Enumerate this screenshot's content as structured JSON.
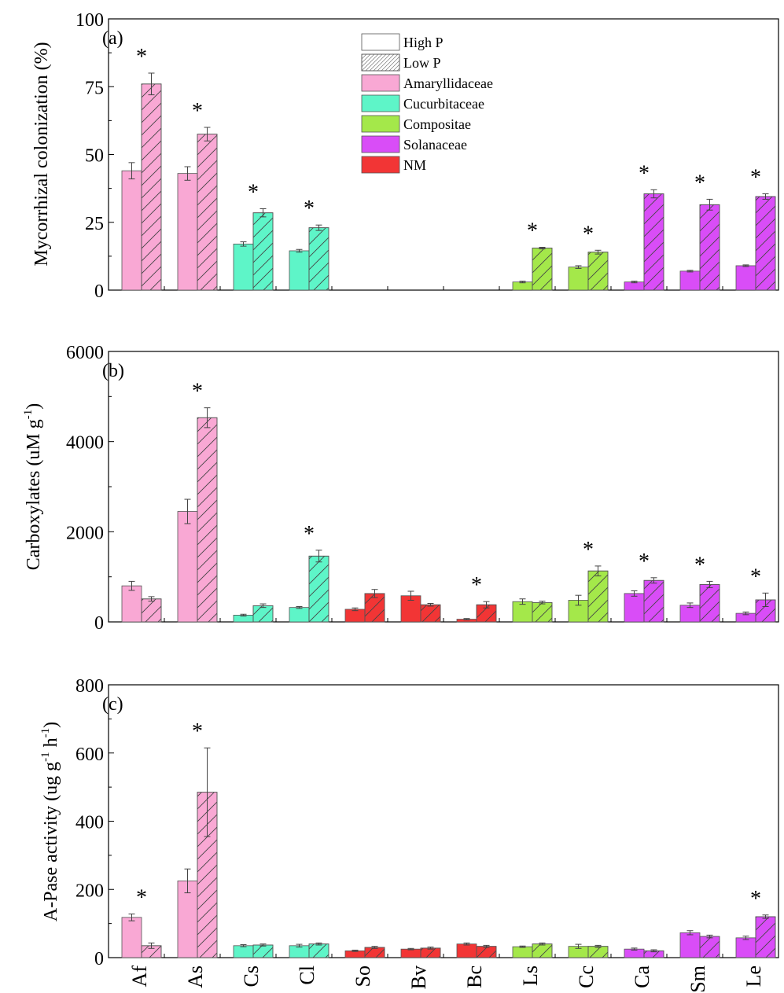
{
  "legend": {
    "pattern_items": [
      {
        "label": "High P",
        "pattern": "solid"
      },
      {
        "label": "Low P",
        "pattern": "hatch"
      }
    ],
    "family_items": [
      {
        "label": "Amaryllidaceae",
        "color": "#f9a8d4"
      },
      {
        "label": "Cucurbitaceae",
        "color": "#5ef5c8"
      },
      {
        "label": "Compositae",
        "color": "#a4e84a"
      },
      {
        "label": "Solanaceae",
        "color": "#d94df7"
      },
      {
        "label": "NM",
        "color": "#f23535"
      }
    ]
  },
  "colors": {
    "Amaryllidaceae": "#f9a8d4",
    "Cucurbitaceae": "#5ef5c8",
    "Compositae": "#a4e84a",
    "Solanaceae": "#d94df7",
    "NM": "#f23535"
  },
  "x_tick_labels": [
    "Af",
    "As",
    "Cs",
    "Cl",
    "So",
    "Bv",
    "Bc",
    "Ls",
    "Cc",
    "Ca",
    "Sm",
    "Le"
  ],
  "chart_data": [
    {
      "type": "bar",
      "panel": "(a)",
      "ylabel": "Mycorrhizal colonization (%)",
      "ylim": [
        0,
        100
      ],
      "yticks": [
        "0",
        "25",
        "50",
        "75",
        "100"
      ],
      "categories": [
        "Af",
        "As",
        "Cs",
        "Cl",
        "So",
        "Bv",
        "Bc",
        "Ls",
        "Cc",
        "Ca",
        "Sm",
        "Le"
      ],
      "families": [
        "Amaryllidaceae",
        "Amaryllidaceae",
        "Cucurbitaceae",
        "Cucurbitaceae",
        "NM",
        "NM",
        "NM",
        "Compositae",
        "Compositae",
        "Solanaceae",
        "Solanaceae",
        "Solanaceae"
      ],
      "series": [
        {
          "name": "High P",
          "values": [
            44,
            43,
            17,
            14.5,
            0,
            0,
            0,
            3,
            8.5,
            3,
            7,
            9
          ],
          "errors": [
            3,
            2.5,
            0.8,
            0.5,
            0,
            0,
            0,
            0.3,
            0.5,
            0.3,
            0.3,
            0.3
          ]
        },
        {
          "name": "Low P",
          "values": [
            76,
            57.5,
            28.5,
            23,
            0,
            0,
            0,
            15.5,
            14,
            35.5,
            31.5,
            34.5
          ],
          "errors": [
            4,
            2.5,
            1.5,
            1,
            0,
            0,
            0,
            0.3,
            0.7,
            1.5,
            2,
            1
          ]
        }
      ],
      "significance": [
        true,
        true,
        true,
        true,
        false,
        false,
        false,
        true,
        true,
        true,
        true,
        true
      ],
      "significance_mark": "*"
    },
    {
      "type": "bar",
      "panel": "(b)",
      "ylabel_parts": [
        "Carboxylates (uM g",
        "-1",
        ")"
      ],
      "ylim": [
        0,
        6000
      ],
      "yticks": [
        "0",
        "2000",
        "4000",
        "6000"
      ],
      "categories": [
        "Af",
        "As",
        "Cs",
        "Cl",
        "So",
        "Bv",
        "Bc",
        "Ls",
        "Cc",
        "Ca",
        "Sm",
        "Le"
      ],
      "families": [
        "Amaryllidaceae",
        "Amaryllidaceae",
        "Cucurbitaceae",
        "Cucurbitaceae",
        "NM",
        "NM",
        "NM",
        "Compositae",
        "Compositae",
        "Solanaceae",
        "Solanaceae",
        "Solanaceae"
      ],
      "series": [
        {
          "name": "High P",
          "values": [
            800,
            2450,
            150,
            320,
            280,
            580,
            60,
            450,
            480,
            630,
            370,
            190
          ],
          "errors": [
            100,
            270,
            20,
            20,
            30,
            100,
            15,
            60,
            110,
            60,
            50,
            30
          ]
        },
        {
          "name": "Low P",
          "values": [
            510,
            4530,
            360,
            1460,
            630,
            380,
            380,
            430,
            1130,
            920,
            830,
            490
          ],
          "errors": [
            50,
            220,
            40,
            130,
            90,
            30,
            70,
            30,
            110,
            60,
            70,
            150
          ]
        }
      ],
      "significance": [
        false,
        true,
        false,
        true,
        false,
        false,
        true,
        false,
        true,
        true,
        true,
        true
      ],
      "significance_mark": "*"
    },
    {
      "type": "bar",
      "panel": "(c)",
      "ylabel_parts": [
        "A-Pase activity (ug g",
        "-1",
        " h",
        "-1",
        ")"
      ],
      "ylim": [
        0,
        800
      ],
      "yticks": [
        "0",
        "200",
        "400",
        "600",
        "800"
      ],
      "categories": [
        "Af",
        "As",
        "Cs",
        "Cl",
        "So",
        "Bv",
        "Bc",
        "Ls",
        "Cc",
        "Ca",
        "Sm",
        "Le"
      ],
      "families": [
        "Amaryllidaceae",
        "Amaryllidaceae",
        "Cucurbitaceae",
        "Cucurbitaceae",
        "NM",
        "NM",
        "NM",
        "Compositae",
        "Compositae",
        "Solanaceae",
        "Solanaceae",
        "Solanaceae"
      ],
      "series": [
        {
          "name": "High P",
          "values": [
            118,
            225,
            35,
            35,
            20,
            25,
            40,
            32,
            33,
            25,
            73,
            58
          ],
          "errors": [
            10,
            35,
            3,
            4,
            2,
            2,
            3,
            2,
            6,
            3,
            6,
            5
          ]
        },
        {
          "name": "Low P",
          "values": [
            35,
            485,
            37,
            40,
            30,
            28,
            33,
            40,
            33,
            20,
            62,
            120
          ],
          "errors": [
            8,
            130,
            3,
            3,
            3,
            3,
            3,
            3,
            3,
            3,
            4,
            5
          ]
        }
      ],
      "significance": [
        true,
        true,
        false,
        false,
        false,
        false,
        false,
        false,
        false,
        false,
        false,
        true
      ],
      "significance_mark": "*"
    }
  ]
}
